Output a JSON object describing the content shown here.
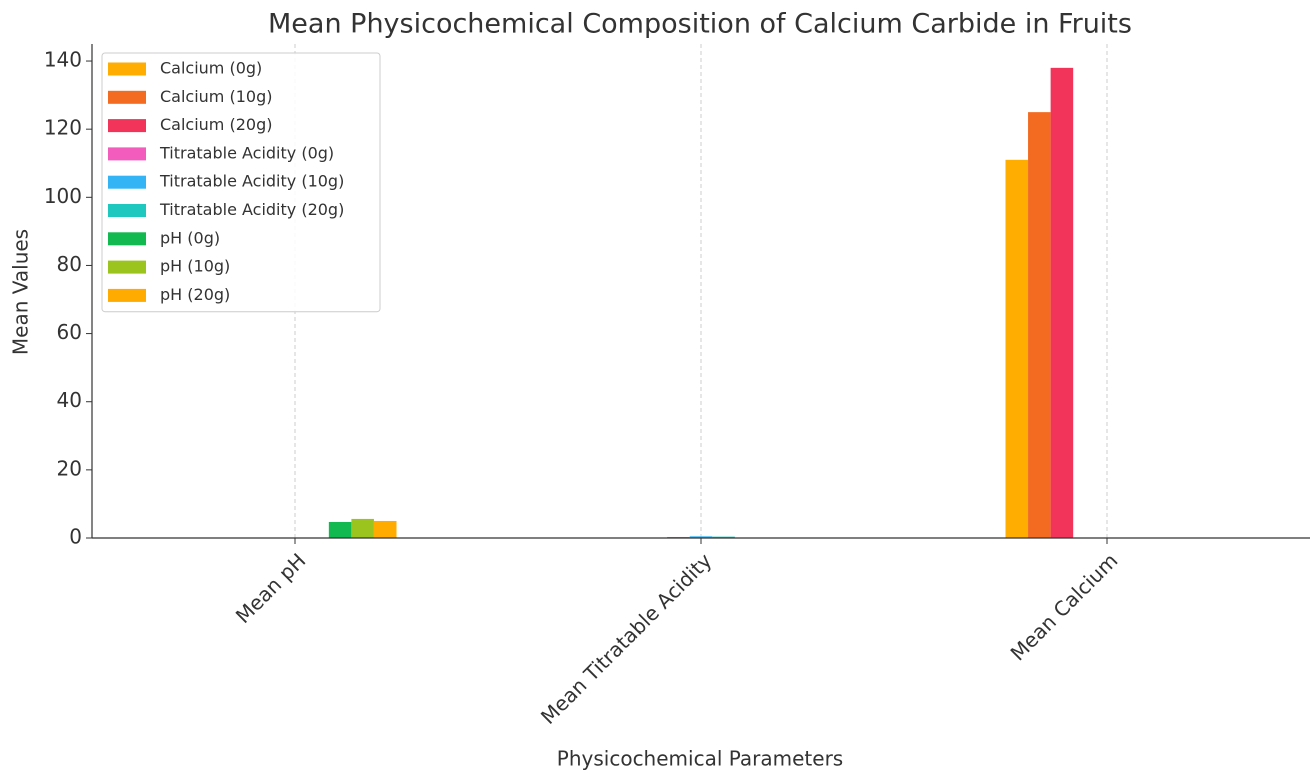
{
  "chart_data": {
    "type": "bar",
    "title": "Mean Physicochemical Composition of Calcium Carbide in Fruits",
    "x_label": "Physicochemical Parameters",
    "y_label": "Mean Values",
    "categories": [
      "Mean pH",
      "Mean Titratable Acidity",
      "Mean Calcium"
    ],
    "series": [
      {
        "name": "Calcium (0g)",
        "color": "#ffad00",
        "values": [
          null,
          null,
          111
        ]
      },
      {
        "name": "Calcium (10g)",
        "color": "#f26b21",
        "values": [
          null,
          null,
          125
        ]
      },
      {
        "name": "Calcium (20g)",
        "color": "#f2345a",
        "values": [
          null,
          null,
          138
        ]
      },
      {
        "name": "Titratable Acidity (0g)",
        "color": "#f35bbd",
        "values": [
          null,
          0.3,
          null
        ]
      },
      {
        "name": "Titratable Acidity (10g)",
        "color": "#33b5f5",
        "values": [
          null,
          0.5,
          null
        ]
      },
      {
        "name": "Titratable Acidity (20g)",
        "color": "#1ec8be",
        "values": [
          null,
          0.4,
          null
        ]
      },
      {
        "name": "pH (0g)",
        "color": "#12b950",
        "values": [
          4.7,
          null,
          null
        ]
      },
      {
        "name": "pH (10g)",
        "color": "#9cc41e",
        "values": [
          5.6,
          null,
          null
        ]
      },
      {
        "name": "pH (20g)",
        "color": "#ffab00",
        "values": [
          5.0,
          null,
          null
        ]
      }
    ],
    "ylim": [
      0,
      145
    ],
    "yticks": [
      0,
      20,
      40,
      60,
      80,
      100,
      120,
      140
    ],
    "grid": "x",
    "legend": "upper left"
  }
}
